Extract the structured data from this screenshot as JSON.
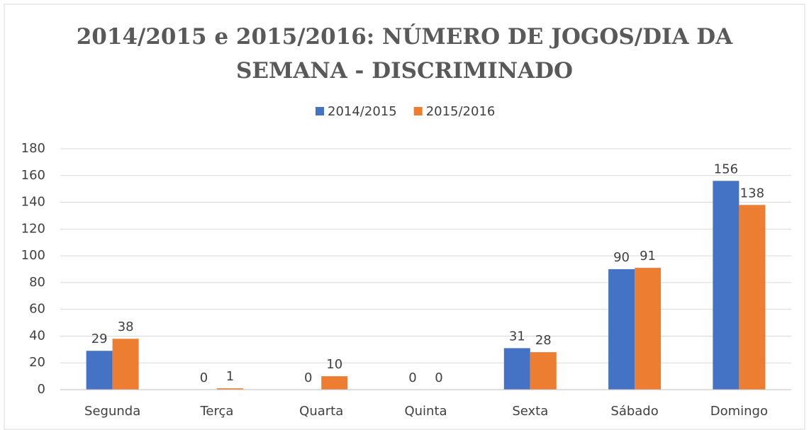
{
  "chart_data": {
    "type": "bar",
    "title": "2014/2015 e 2015/2016: NÚMERO DE JOGOS/DIA DA SEMANA - DISCRIMINADO",
    "categories": [
      "Segunda",
      "Terça",
      "Quarta",
      "Quinta",
      "Sexta",
      "Sábado",
      "Domingo"
    ],
    "series": [
      {
        "name": "2014/2015",
        "color": "#4472c4",
        "values": [
          29,
          0,
          0,
          0,
          31,
          90,
          156
        ]
      },
      {
        "name": "2015/2016",
        "color": "#ed7d31",
        "values": [
          38,
          1,
          10,
          0,
          28,
          91,
          138
        ]
      }
    ],
    "ylim": [
      0,
      180
    ],
    "yticks": [
      0,
      20,
      40,
      60,
      80,
      100,
      120,
      140,
      160,
      180
    ],
    "grid": true,
    "legend": "top"
  }
}
